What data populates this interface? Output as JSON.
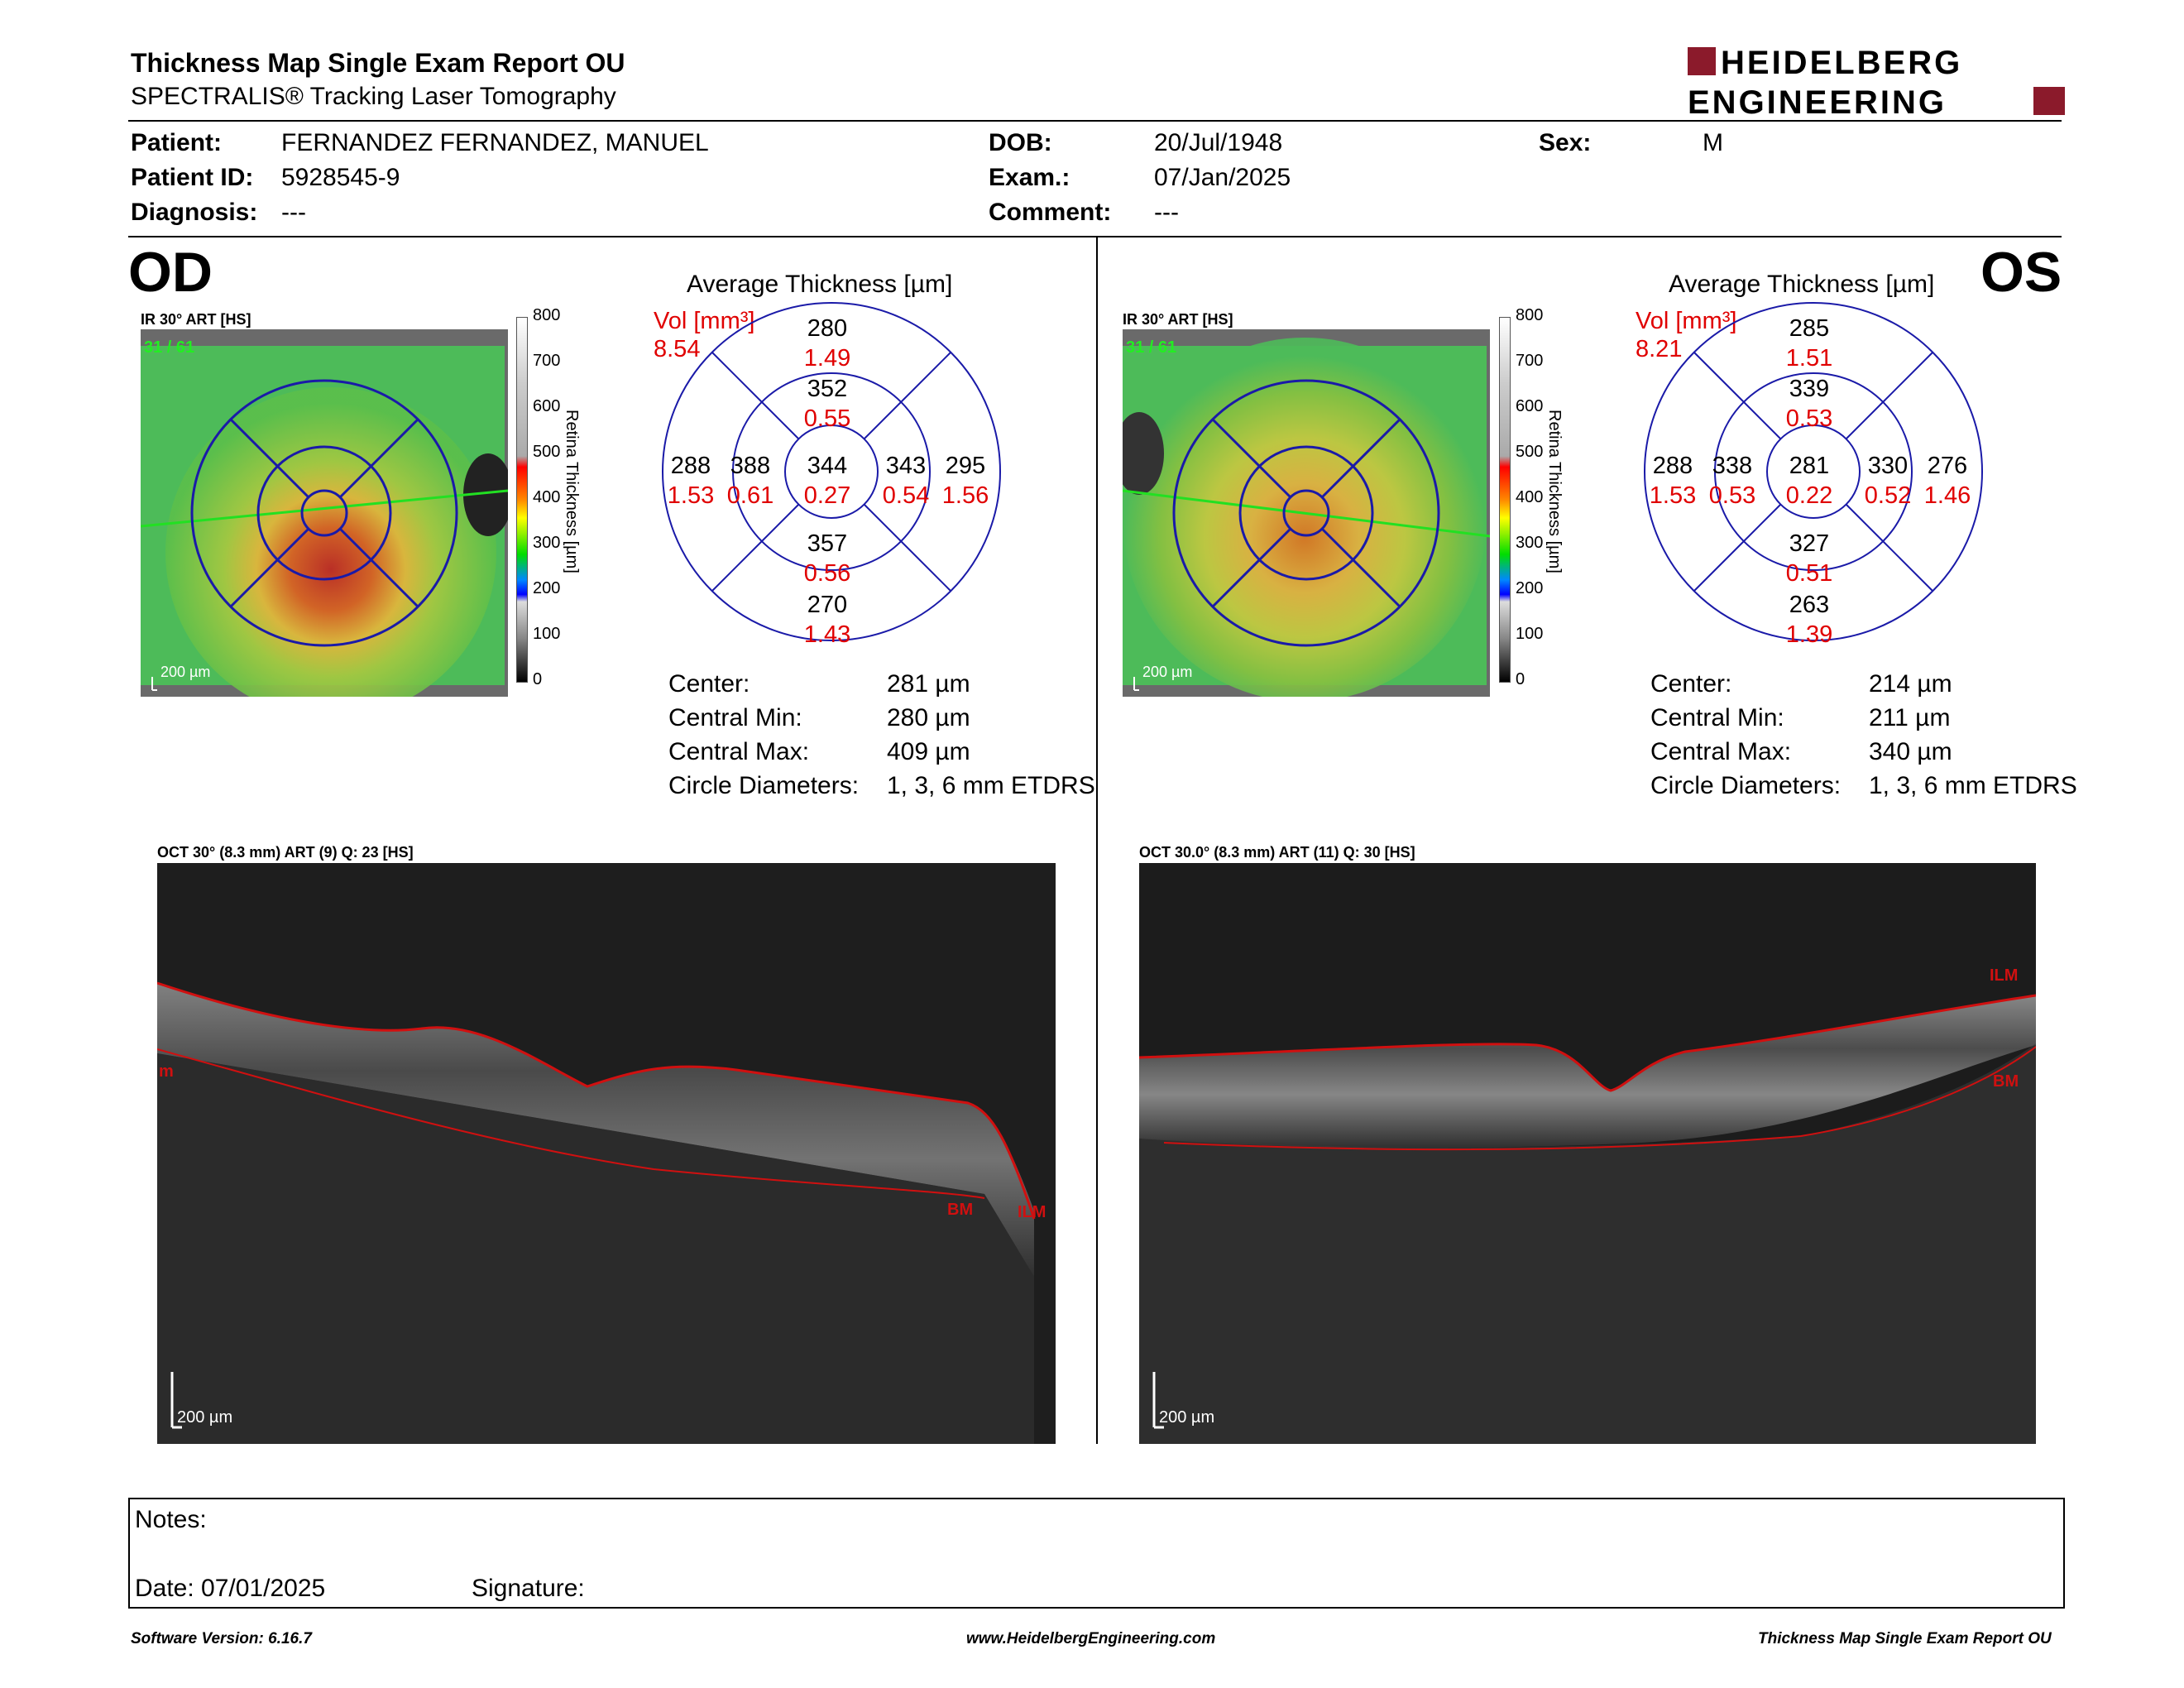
{
  "header": {
    "title": "Thickness Map Single Exam Report OU",
    "subtitle": "SPECTRALIS® Tracking Laser Tomography",
    "logo_line1": "HEIDELBERG",
    "logo_line2": "ENGINEERING"
  },
  "patient": {
    "patient_label": "Patient:",
    "patient_value": "FERNANDEZ FERNANDEZ, MANUEL",
    "id_label": "Patient ID:",
    "id_value": "5928545-9",
    "diag_label": "Diagnosis:",
    "diag_value": "---",
    "dob_label": "DOB:",
    "dob_value": "20/Jul/1948",
    "exam_label": "Exam.:",
    "exam_value": "07/Jan/2025",
    "comment_label": "Comment:",
    "comment_value": "---",
    "sex_label": "Sex:",
    "sex_value": "M"
  },
  "od": {
    "eye": "OD",
    "ir_label": "IR 30° ART [HS]",
    "ir_count": "31 / 61",
    "scale_bar": "200 µm",
    "avg_title": "Average Thickness [µm]",
    "vol_label": "Vol [mm³]",
    "vol_total": "8.54",
    "etdrs": {
      "sup_outer": "280",
      "sup_outer_vol": "1.49",
      "sup_inner": "352",
      "sup_inner_vol": "0.55",
      "temp_outer": "288",
      "temp_outer_vol": "1.53",
      "temp_inner": "388",
      "temp_inner_vol": "0.61",
      "center": "344",
      "center_vol": "0.27",
      "nas_inner": "343",
      "nas_inner_vol": "0.54",
      "nas_outer": "295",
      "nas_outer_vol": "1.56",
      "inf_inner": "357",
      "inf_inner_vol": "0.56",
      "inf_outer": "270",
      "inf_outer_vol": "1.43"
    },
    "stats": {
      "center_label": "Center:",
      "center_value": "281 µm",
      "min_label": "Central Min:",
      "min_value": "280 µm",
      "max_label": "Central Max:",
      "max_value": "409 µm",
      "circ_label": "Circle Diameters:",
      "circ_value": "1, 3, 6 mm ETDRS"
    },
    "oct_label": "OCT 30° (8.3 mm) ART (9) Q: 23 [HS]",
    "oct_scale": "200 µm",
    "oct_labels": {
      "ilm": "ILM",
      "bm": "BM",
      "left": "m"
    }
  },
  "os": {
    "eye": "OS",
    "ir_label": "IR 30° ART [HS]",
    "ir_count": "31 / 61",
    "scale_bar": "200 µm",
    "avg_title": "Average Thickness [µm]",
    "vol_label": "Vol [mm³]",
    "vol_total": "8.21",
    "etdrs": {
      "sup_outer": "285",
      "sup_outer_vol": "1.51",
      "sup_inner": "339",
      "sup_inner_vol": "0.53",
      "temp_outer": "288",
      "temp_outer_vol": "1.53",
      "temp_inner": "338",
      "temp_inner_vol": "0.53",
      "center": "281",
      "center_vol": "0.22",
      "nas_inner": "330",
      "nas_inner_vol": "0.52",
      "nas_outer": "276",
      "nas_outer_vol": "1.46",
      "inf_inner": "327",
      "inf_inner_vol": "0.51",
      "inf_outer": "263",
      "inf_outer_vol": "1.39"
    },
    "stats": {
      "center_label": "Center:",
      "center_value": "214 µm",
      "min_label": "Central Min:",
      "min_value": "211 µm",
      "max_label": "Central Max:",
      "max_value": "340 µm",
      "circ_label": "Circle Diameters:",
      "circ_value": "1, 3, 6 mm ETDRS"
    },
    "oct_label": "OCT 30.0° (8.3 mm) ART (11) Q: 30 [HS]",
    "oct_scale": "200 µm",
    "oct_labels": {
      "ilm": "ILM",
      "bm": "BM"
    }
  },
  "colorbar": {
    "ticks": [
      "800",
      "700",
      "600",
      "500",
      "400",
      "300",
      "200",
      "100",
      "0"
    ],
    "axis_label": "Retina Thickness [µm]"
  },
  "notes": {
    "notes_label": "Notes:",
    "date_label": "Date: 07/01/2025",
    "signature_label": "Signature:"
  },
  "footer": {
    "left": "Software Version: 6.16.7",
    "center": "www.HeidelbergEngineering.com",
    "right": "Thickness Map Single Exam Report OU"
  },
  "colors": {
    "accent_red": "#8b1a2b",
    "value_red": "#e00000",
    "ring_blue": "#1a1aa8"
  }
}
